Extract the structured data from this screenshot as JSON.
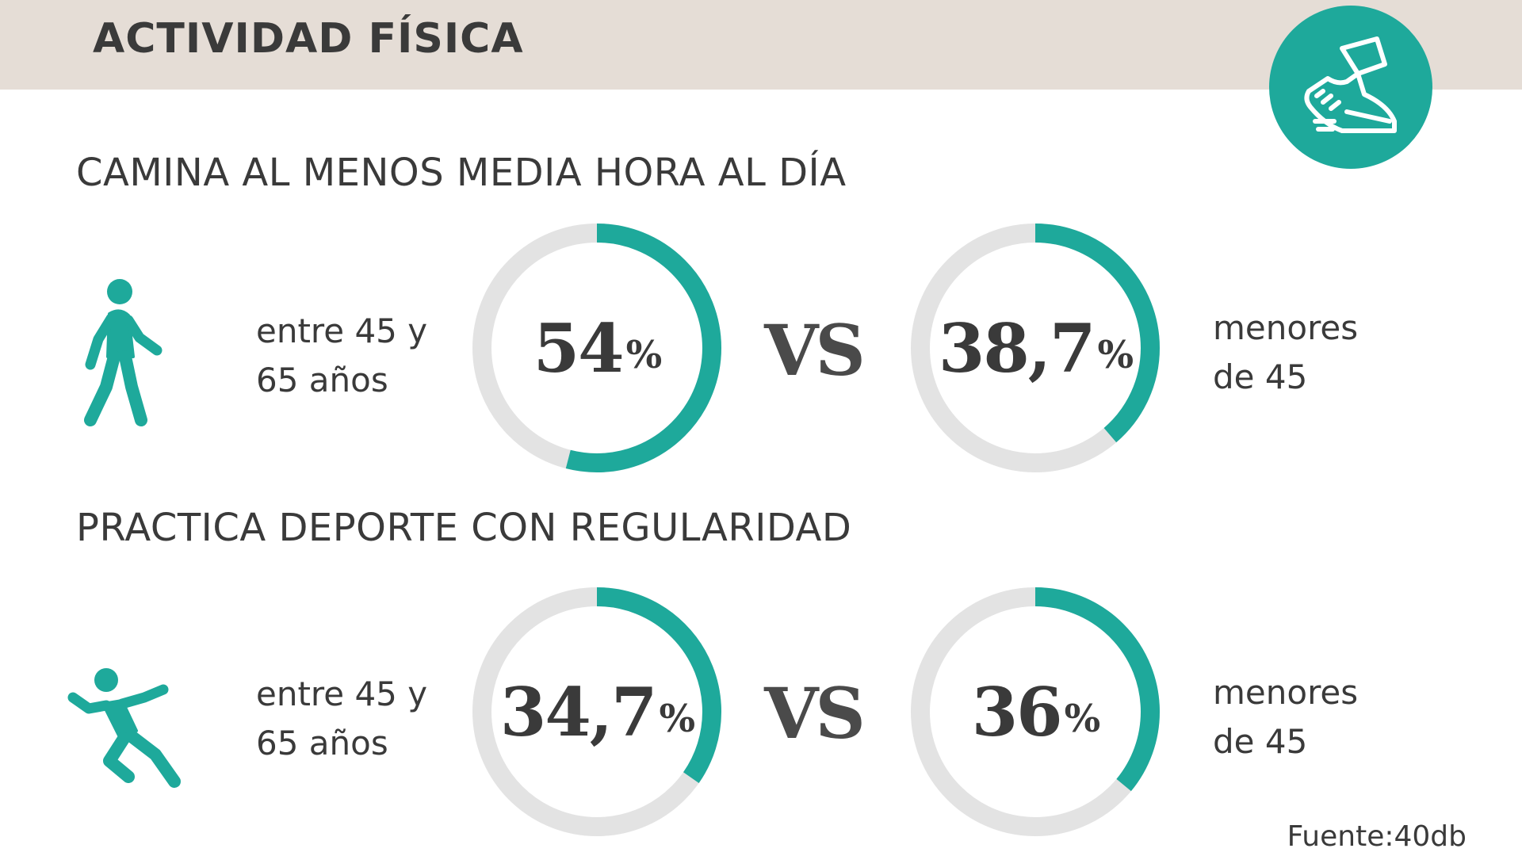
{
  "title": "ACTIVIDAD FÍSICA",
  "source": "Fuente:40db",
  "colors": {
    "accent": "#1ea99b",
    "track": "#e3e3e3",
    "header": "#e5ddd6",
    "text": "#3a3a3a"
  },
  "icons": {
    "badge": "shoe-icon",
    "walk": "walking-person-icon",
    "run": "running-person-icon"
  },
  "sections": [
    {
      "heading": "CAMINA AL MENOS MEDIA HORA AL DÍA",
      "vs": "VS",
      "left": {
        "label_line1": "entre 45 y",
        "label_line2": "65 años",
        "number": "54",
        "unit": "%"
      },
      "right": {
        "label_line1": "menores",
        "label_line2": "de 45",
        "number": "38,7",
        "unit": "%"
      }
    },
    {
      "heading": "PRACTICA DEPORTE CON REGULARIDAD",
      "vs": "VS",
      "left": {
        "label_line1": "entre 45 y",
        "label_line2": "65 años",
        "number": "34,7",
        "unit": "%"
      },
      "right": {
        "label_line1": "menores",
        "label_line2": "de 45",
        "number": "36",
        "unit": "%"
      }
    }
  ],
  "chart_data": [
    {
      "type": "pie",
      "title": "CAMINA AL MENOS MEDIA HORA AL DÍA",
      "categories": [
        "entre 45 y 65 años"
      ],
      "values": [
        54
      ]
    },
    {
      "type": "pie",
      "title": "CAMINA AL MENOS MEDIA HORA AL DÍA",
      "categories": [
        "menores de 45"
      ],
      "values": [
        38.7
      ]
    },
    {
      "type": "pie",
      "title": "PRACTICA DEPORTE CON REGULARIDAD",
      "categories": [
        "entre 45 y 65 años"
      ],
      "values": [
        34.7
      ]
    },
    {
      "type": "pie",
      "title": "PRACTICA DEPORTE CON REGULARIDAD",
      "categories": [
        "menores de 45"
      ],
      "values": [
        36
      ]
    }
  ]
}
